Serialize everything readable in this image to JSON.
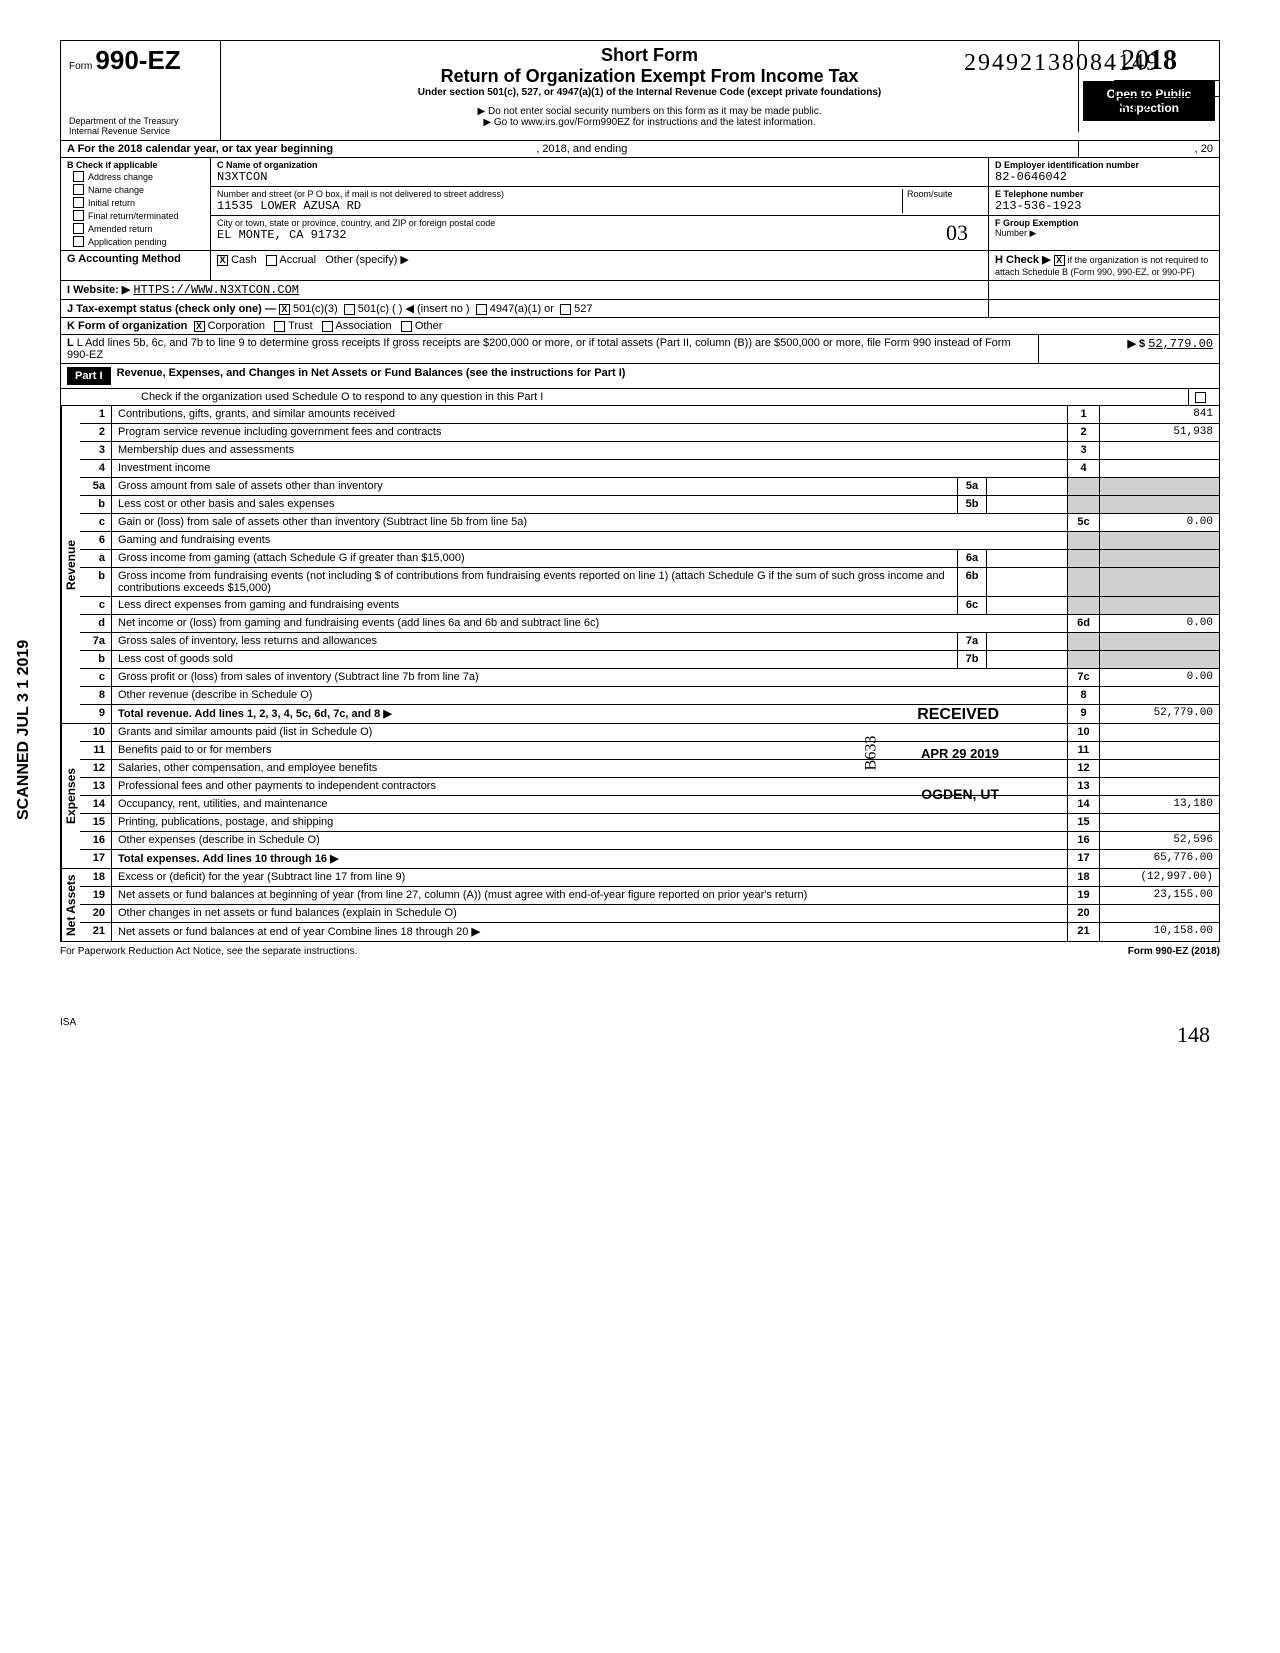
{
  "doc_id": "29492138084149",
  "omb": "OMB No 1545-1150",
  "form_prefix": "Form",
  "form_number": "990-EZ",
  "short_form": "Short Form",
  "main_title": "Return of Organization Exempt From Income Tax",
  "sub_title": "Under section 501(c), 527, or 4947(a)(1) of the Internal Revenue Code (except private foundations)",
  "ssn_note": "▶ Do not enter social security numbers on this form as it may be made public.",
  "goto_note": "▶ Go to www.irs.gov/Form990EZ for instructions and the latest information.",
  "year": "2018",
  "year_outline": "20",
  "open_public": "Open to Public Inspection",
  "dept1": "Department of the Treasury",
  "dept2": "Internal Revenue Service",
  "a_label": "A For the 2018 calendar year, or tax year beginning",
  "a_mid": ", 2018, and ending",
  "a_end": ", 20",
  "b_label": "B Check if applicable",
  "b_opts": [
    "Address change",
    "Name change",
    "Initial return",
    "Final return/terminated",
    "Amended return",
    "Application pending"
  ],
  "c_label": "C Name of organization",
  "org_name": "N3XTCON",
  "street_label": "Number and street (or P O box, if mail is not delivered to street address)",
  "room_label": "Room/suite",
  "street": "11535 LOWER AZUSA RD",
  "city_label": "City or town, state or province, country, and ZIP or foreign postal code",
  "city": "EL MONTE, CA 91732",
  "d_label": "D Employer identification number",
  "ein": "82-0646042",
  "e_label": "E Telephone number",
  "phone": "213-536-1923",
  "f_label": "F Group Exemption",
  "f_sub": "Number ▶",
  "g_label": "G Accounting Method",
  "g_cash": "Cash",
  "g_accrual": "Accrual",
  "g_other": "Other (specify) ▶",
  "h_label": "H Check ▶",
  "h_text": "if the organization is not required to attach Schedule B (Form 990, 990-EZ, or 990-PF)",
  "i_label": "I Website: ▶",
  "website": "HTTPS://WWW.N3XTCON.COM",
  "j_label": "J Tax-exempt status (check only one) —",
  "j_501c3": "501(c)(3)",
  "j_501c": "501(c) (",
  "j_insert": ") ◀ (insert no )",
  "j_4947": "4947(a)(1) or",
  "j_527": "527",
  "k_label": "K Form of organization",
  "k_corp": "Corporation",
  "k_trust": "Trust",
  "k_assoc": "Association",
  "k_other": "Other",
  "l_label": "L Add lines 5b, 6c, and 7b to line 9 to determine gross receipts If gross receipts are $200,000 or more, or if total assets (Part II, column (B)) are $500,000 or more, file Form 990 instead of Form 990-EZ",
  "l_arrow": "▶  $",
  "l_value": "52,779.00",
  "part1_label": "Part I",
  "part1_title": "Revenue, Expenses, and Changes in Net Assets or Fund Balances (see the instructions for Part I)",
  "part1_sub": "Check if the organization used Schedule O to respond to any question in this Part I",
  "lines": {
    "l1": {
      "no": "1",
      "desc": "Contributions, gifts, grants, and similar amounts received",
      "box": "1",
      "val": "841"
    },
    "l2": {
      "no": "2",
      "desc": "Program service revenue including government fees and contracts",
      "box": "2",
      "val": "51,938"
    },
    "l3": {
      "no": "3",
      "desc": "Membership dues and assessments",
      "box": "3",
      "val": ""
    },
    "l4": {
      "no": "4",
      "desc": "Investment income",
      "box": "4",
      "val": ""
    },
    "l5a": {
      "no": "5a",
      "desc": "Gross amount from sale of assets other than inventory",
      "mini": "5a"
    },
    "l5b": {
      "no": "b",
      "desc": "Less cost or other basis and sales expenses",
      "mini": "5b"
    },
    "l5c": {
      "no": "c",
      "desc": "Gain or (loss) from sale of assets other than inventory (Subtract line 5b from line 5a)",
      "box": "5c",
      "val": "0.00"
    },
    "l6": {
      "no": "6",
      "desc": "Gaming and fundraising events"
    },
    "l6a": {
      "no": "a",
      "desc": "Gross income from gaming (attach Schedule G if greater than $15,000)",
      "mini": "6a"
    },
    "l6b": {
      "no": "b",
      "desc": "Gross income from fundraising events (not including  $                   of contributions from fundraising events reported on line 1) (attach Schedule G if the sum of such gross income and contributions exceeds $15,000)",
      "mini": "6b"
    },
    "l6c": {
      "no": "c",
      "desc": "Less direct expenses from gaming and fundraising events",
      "mini": "6c"
    },
    "l6d": {
      "no": "d",
      "desc": "Net income or (loss) from gaming and fundraising events (add lines 6a and 6b and subtract line 6c)",
      "box": "6d",
      "val": "0.00"
    },
    "l7a": {
      "no": "7a",
      "desc": "Gross sales of inventory, less returns and allowances",
      "mini": "7a"
    },
    "l7b": {
      "no": "b",
      "desc": "Less cost of goods sold",
      "mini": "7b"
    },
    "l7c": {
      "no": "c",
      "desc": "Gross profit or (loss) from sales of inventory (Subtract line 7b from line 7a)",
      "box": "7c",
      "val": "0.00"
    },
    "l8": {
      "no": "8",
      "desc": "Other revenue (describe in Schedule O)",
      "box": "8",
      "val": ""
    },
    "l9": {
      "no": "9",
      "desc": "Total revenue. Add lines 1, 2, 3, 4, 5c, 6d, 7c, and 8",
      "box": "9",
      "val": "52,779.00",
      "arrow": true,
      "bold": true
    },
    "l10": {
      "no": "10",
      "desc": "Grants and similar amounts paid (list in Schedule O)",
      "box": "10",
      "val": ""
    },
    "l11": {
      "no": "11",
      "desc": "Benefits paid to or for members",
      "box": "11",
      "val": ""
    },
    "l12": {
      "no": "12",
      "desc": "Salaries, other compensation, and employee benefits",
      "box": "12",
      "val": ""
    },
    "l13": {
      "no": "13",
      "desc": "Professional fees and other payments to independent contractors",
      "box": "13",
      "val": ""
    },
    "l14": {
      "no": "14",
      "desc": "Occupancy, rent, utilities, and maintenance",
      "box": "14",
      "val": "13,180"
    },
    "l15": {
      "no": "15",
      "desc": "Printing, publications, postage, and shipping",
      "box": "15",
      "val": ""
    },
    "l16": {
      "no": "16",
      "desc": "Other expenses (describe in Schedule O)",
      "box": "16",
      "val": "52,596"
    },
    "l17": {
      "no": "17",
      "desc": "Total expenses. Add lines 10 through 16",
      "box": "17",
      "val": "65,776.00",
      "arrow": true,
      "bold": true
    },
    "l18": {
      "no": "18",
      "desc": "Excess or (deficit) for the year (Subtract line 17 from line 9)",
      "box": "18",
      "val": "(12,997.00)"
    },
    "l19": {
      "no": "19",
      "desc": "Net assets or fund balances at beginning of year (from line 27, column (A)) (must agree with end-of-year figure reported on prior year's return)",
      "box": "19",
      "val": "23,155.00"
    },
    "l20": {
      "no": "20",
      "desc": "Other changes in net assets or fund balances (explain in Schedule O)",
      "box": "20",
      "val": ""
    },
    "l21": {
      "no": "21",
      "desc": "Net assets or fund balances at end of year Combine lines 18 through 20",
      "box": "21",
      "val": "10,158.00",
      "arrow": true
    }
  },
  "section_labels": {
    "revenue": "Revenue",
    "expenses": "Expenses",
    "netassets": "Net Assets"
  },
  "footer_left": "For Paperwork Reduction Act Notice, see the separate instructions.",
  "footer_right": "Form 990-EZ (2018)",
  "isa": "ISA",
  "scanned": "SCANNED JUL 3 1 2019",
  "received": "RECEIVED",
  "received_date": "APR 29 2019",
  "received_city": "OGDEN, UT",
  "hw_1812": "1812",
  "hw_03": "03",
  "hw_b633": "B633",
  "hw_148": "148"
}
